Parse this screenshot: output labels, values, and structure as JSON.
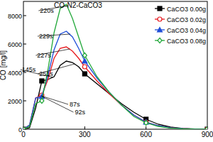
{
  "chart_data": {
    "type": "line",
    "title": "CO-N2-CaCO3",
    "y_label": "CO [mg/l]",
    "x": [
      0,
      30,
      60,
      90,
      120,
      150,
      180,
      210,
      240,
      270,
      300,
      360,
      420,
      480,
      540,
      600,
      660,
      720,
      780,
      840,
      900
    ],
    "series": [
      {
        "name": "CaCO3 0.00g",
        "color": "#000000",
        "marker": "square",
        "values": [
          0,
          100,
          1500,
          3400,
          3500,
          3700,
          4500,
          4800,
          4700,
          4400,
          3900,
          3200,
          2500,
          1800,
          1200,
          700,
          350,
          150,
          50,
          20,
          0
        ]
      },
      {
        "name": "CaCO3 0.02g",
        "color": "#e8191e",
        "marker": "circle-open",
        "values": [
          0,
          300,
          2200,
          2400,
          3500,
          5000,
          5700,
          5800,
          5500,
          5000,
          4400,
          3400,
          2500,
          1700,
          1000,
          500,
          250,
          100,
          40,
          10,
          0
        ]
      },
      {
        "name": "CaCO3 0.04g",
        "color": "#1f4ed8",
        "marker": "triangle",
        "values": [
          0,
          300,
          2200,
          2300,
          3800,
          5600,
          6700,
          6900,
          6500,
          5700,
          4800,
          3600,
          2600,
          1700,
          1000,
          500,
          250,
          100,
          40,
          10,
          0
        ]
      },
      {
        "name": "CaCO3 0.08g",
        "color": "#22a83a",
        "marker": "diamond-open",
        "values": [
          0,
          200,
          1800,
          2000,
          4200,
          6800,
          8500,
          8800,
          7800,
          6500,
          5200,
          3700,
          2600,
          1700,
          900,
          450,
          200,
          80,
          30,
          10,
          0
        ]
      }
    ],
    "annotations": [
      {
        "text": "220s",
        "x": 220,
        "y": 8700
      },
      {
        "text": "229s",
        "x": 229,
        "y": 6700
      },
      {
        "text": "227s",
        "x": 227,
        "y": 5650
      },
      {
        "text": "251s",
        "x": 251,
        "y": 4600
      },
      {
        "text": "145s",
        "x": 145,
        "y": 3650
      },
      {
        "text": "87s",
        "x": 87,
        "y": 2350
      },
      {
        "text": "92s",
        "x": 92,
        "y": 2300
      }
    ],
    "xlim": [
      0,
      900
    ],
    "xticks": [
      0,
      300,
      600,
      900
    ],
    "ylim": [
      0,
      9000
    ],
    "yticks": [
      0,
      2000,
      4000,
      6000,
      8000
    ],
    "legend": "upper-right",
    "grid": false
  }
}
